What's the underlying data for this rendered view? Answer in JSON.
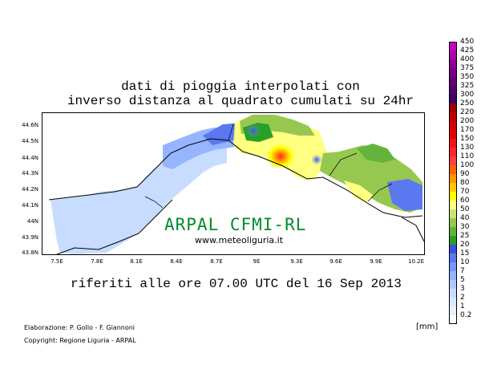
{
  "title_line1": "dati di pioggia interpolati con",
  "title_line2": "inverso distanza al quadrato cumulati su 24hr",
  "watermark": "ARPAL CFMI-RL",
  "website": "www.meteoliguria.it",
  "footer_date": "riferiti alle ore 07.00 UTC del 16 Sep 2013",
  "credit_line1": "Elaborazione: P. Gollo - F. Giannoni",
  "credit_line2": "Copyright: Regione Liguria - ARPAL",
  "unit_label": "[mm]",
  "lat_labels": [
    "44.6N",
    "44.5N",
    "44.4N",
    "44.3N",
    "44.2N",
    "44.1N",
    "44N",
    "43.9N",
    "43.8N"
  ],
  "lon_labels": [
    "7.5E",
    "7.8E",
    "8.1E",
    "8.4E",
    "8.7E",
    "9E",
    "9.3E",
    "9.6E",
    "9.9E",
    "10.2E"
  ],
  "colorbar": [
    {
      "value": "450",
      "color": "#c800c8"
    },
    {
      "value": "425",
      "color": "#aa00aa"
    },
    {
      "value": "400",
      "color": "#8c0096"
    },
    {
      "value": "375",
      "color": "#780082"
    },
    {
      "value": "350",
      "color": "#640078"
    },
    {
      "value": "325",
      "color": "#50006e"
    },
    {
      "value": "300",
      "color": "#3c0064"
    },
    {
      "value": "250",
      "color": "#a00000"
    },
    {
      "value": "220",
      "color": "#be0000"
    },
    {
      "value": "200",
      "color": "#d20000"
    },
    {
      "value": "170",
      "color": "#e60000"
    },
    {
      "value": "150",
      "color": "#f01414"
    },
    {
      "value": "130",
      "color": "#ff2828"
    },
    {
      "value": "110",
      "color": "#ff4040"
    },
    {
      "value": "100",
      "color": "#ff6400"
    },
    {
      "value": "90",
      "color": "#ff9600"
    },
    {
      "value": "80",
      "color": "#ffc800"
    },
    {
      "value": "70",
      "color": "#ffff00"
    },
    {
      "value": "60",
      "color": "#ffff80"
    },
    {
      "value": "50",
      "color": "#c8e678"
    },
    {
      "value": "40",
      "color": "#96c850"
    },
    {
      "value": "30",
      "color": "#64b43c"
    },
    {
      "value": "25",
      "color": "#28a028"
    },
    {
      "value": "20",
      "color": "#3c50dc"
    },
    {
      "value": "15",
      "color": "#5a78f0"
    },
    {
      "value": "10",
      "color": "#7896ff"
    },
    {
      "value": "7",
      "color": "#96b4ff"
    },
    {
      "value": "5",
      "color": "#b4c8ff"
    },
    {
      "value": "3",
      "color": "#c8dcff"
    },
    {
      "value": "2",
      "color": "#dce8ff"
    },
    {
      "value": "1",
      "color": "#e8f0ff"
    },
    {
      "value": "0.2",
      "color": "#ffffff"
    }
  ]
}
